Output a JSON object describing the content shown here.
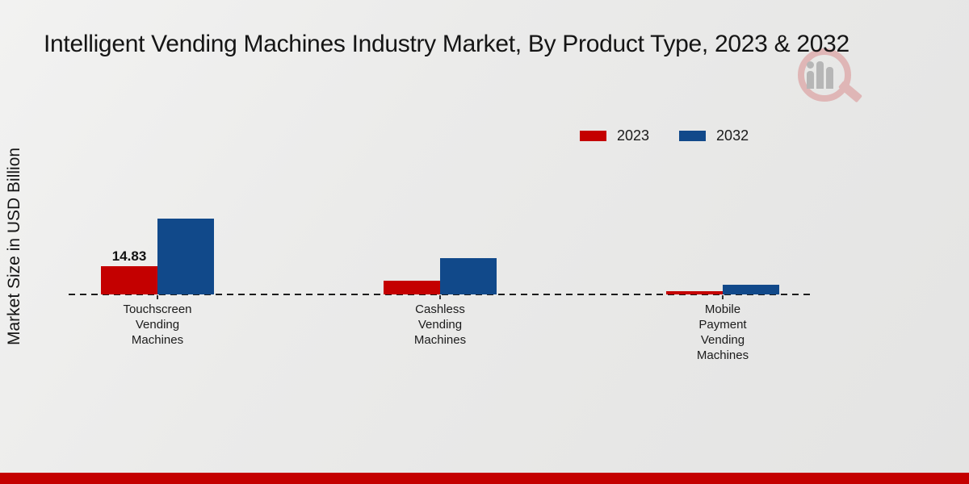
{
  "title": "Intelligent Vending Machines Industry Market, By Product Type, 2023 & 2032",
  "y_axis_label": "Market Size in USD Billion",
  "legend": [
    {
      "label": "2023",
      "color": "#c40000"
    },
    {
      "label": "2032",
      "color": "#11498a"
    }
  ],
  "chart_data": {
    "type": "bar",
    "title": "Intelligent Vending Machines Industry Market, By Product Type, 2023 & 2032",
    "xlabel": "",
    "ylabel": "Market Size in USD Billion",
    "ylim": [
      0,
      45
    ],
    "grid": false,
    "legend_position": "top-right",
    "baseline_style": "dashed",
    "categories": [
      "Touchscreen Vending Machines",
      "Cashless Vending Machines",
      "Mobile Payment Vending Machines"
    ],
    "category_label_lines": [
      [
        "Touchscreen",
        "Vending",
        "Machines"
      ],
      [
        "Cashless",
        "Vending",
        "Machines"
      ],
      [
        "Mobile",
        "Payment",
        "Vending",
        "Machines"
      ]
    ],
    "series": [
      {
        "name": "2023",
        "color": "#c40000",
        "values": [
          14.83,
          7.2,
          1.6
        ],
        "data_labels": [
          "14.83",
          "",
          ""
        ]
      },
      {
        "name": "2032",
        "color": "#11498a",
        "values": [
          40.0,
          19.1,
          5.1
        ],
        "data_labels": [
          "",
          "",
          ""
        ]
      }
    ]
  },
  "watermark": {
    "icon": "magnifier-analytics-logo",
    "ring_color": "#d98f8f",
    "bars_color": "#8f8f8f"
  },
  "footer": {
    "accent_color": "#c40000"
  }
}
